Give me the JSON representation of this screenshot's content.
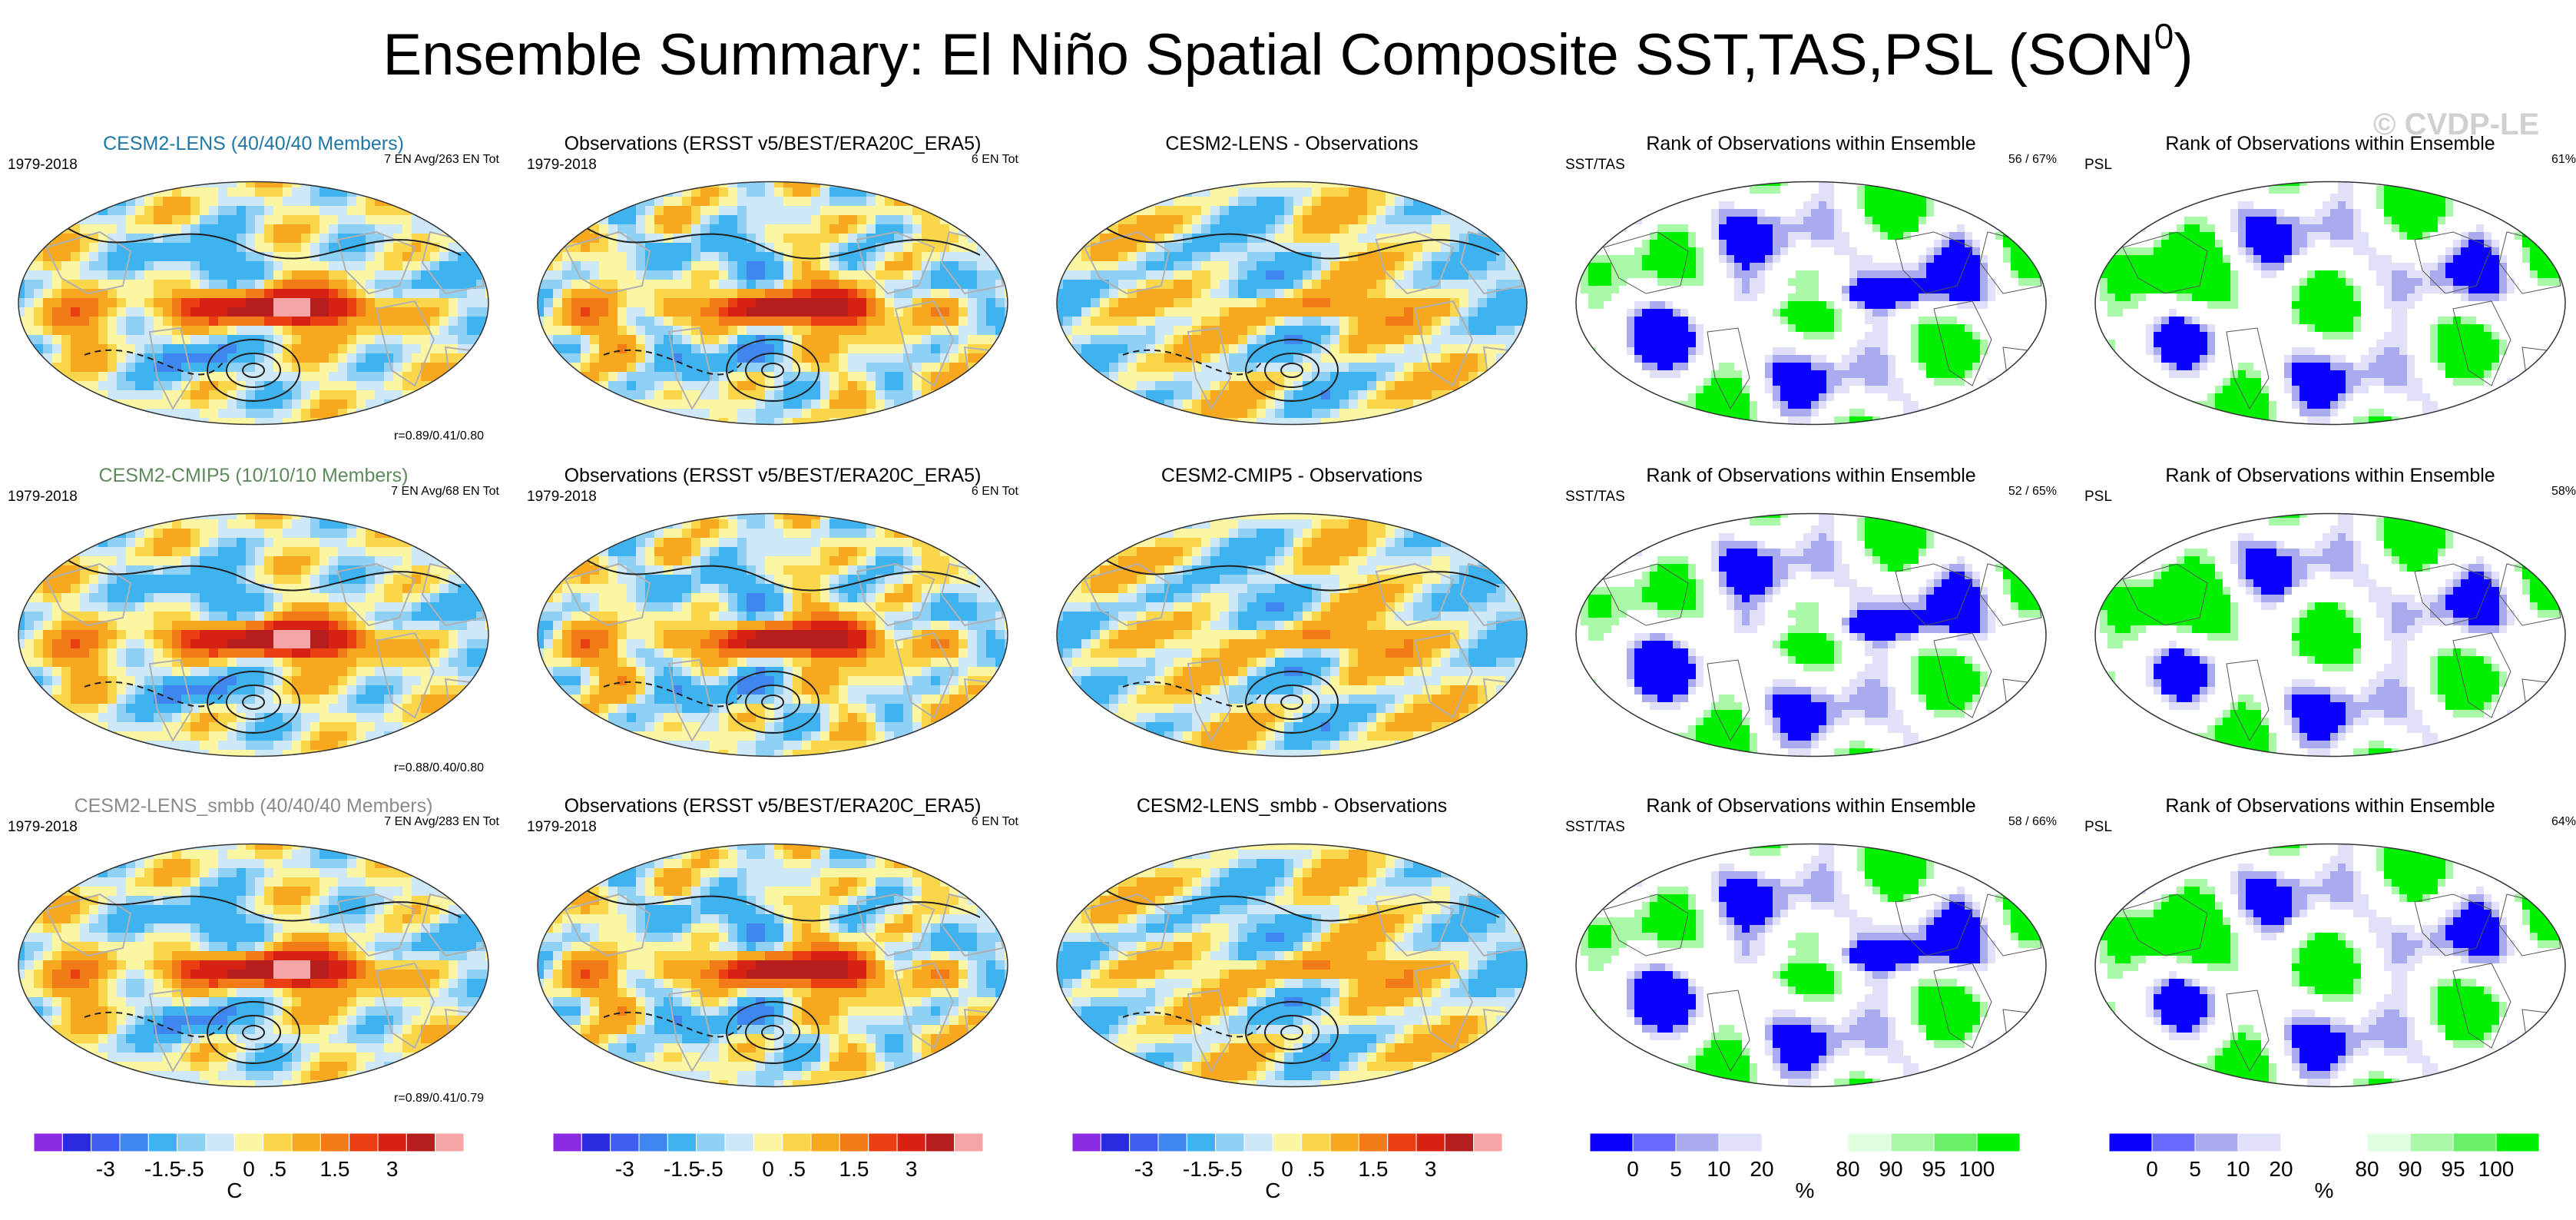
{
  "figure": {
    "title": "Ensemble Summary: El Niño Spatial Composite SST,TAS,PSL (SON",
    "title_sup": "0",
    "title_close": ")",
    "watermark": "© CVDP-LE"
  },
  "colors": {
    "temp_palette": [
      "#8b2be2",
      "#2a2ae0",
      "#3d5ef0",
      "#3f86ee",
      "#3fb2f0",
      "#8fd0f5",
      "#cfe8f7",
      "#fbf6a3",
      "#fbd64a",
      "#f7a81f",
      "#f27a17",
      "#ea3f12",
      "#d62113",
      "#b61e1e",
      "#f5a5a5"
    ],
    "rank_palette": [
      "#0b00ff",
      "#6a6aff",
      "#aaaaf0",
      "#e0e0f8",
      "#ffffff",
      "#ffffff",
      "#dfffdf",
      "#a8f8a8",
      "#68f068",
      "#00f000"
    ],
    "land_outline": "#b0b0b0",
    "map_outline": "#333333"
  },
  "chart_data": [
    {
      "type": "heatmap",
      "title": "CESM2-LENS (40/40/40 Members)",
      "period": "1979-2018",
      "info": "7 EN Avg/263 EN Tot",
      "corr": "r=0.89/0.41/0.80",
      "pattern": "model"
    },
    {
      "type": "heatmap",
      "title": "Observations (ERSST v5/BEST/ERA20C_ERA5)",
      "period": "1979-2018",
      "info": "6 EN Tot",
      "pattern": "obs"
    },
    {
      "type": "heatmap",
      "title": "CESM2-LENS - Observations",
      "pattern": "diff"
    },
    {
      "type": "heatmap",
      "title": "Rank of Observations within Ensemble",
      "left_label": "SST/TAS",
      "info": "56 /  67%",
      "pattern": "rank_a"
    },
    {
      "type": "heatmap",
      "title": "Rank of Observations within Ensemble",
      "left_label": "PSL",
      "info": "61%",
      "pattern": "rank_b"
    },
    {
      "type": "heatmap",
      "title": "CESM2-CMIP5 (10/10/10 Members)",
      "period": "1979-2018",
      "info": "7 EN Avg/68 EN Tot",
      "corr": "r=0.88/0.40/0.80",
      "pattern": "model"
    },
    {
      "type": "heatmap",
      "title": "Observations (ERSST v5/BEST/ERA20C_ERA5)",
      "period": "1979-2018",
      "info": "6 EN Tot",
      "pattern": "obs"
    },
    {
      "type": "heatmap",
      "title": "CESM2-CMIP5 - Observations",
      "pattern": "diff"
    },
    {
      "type": "heatmap",
      "title": "Rank of Observations within Ensemble",
      "left_label": "SST/TAS",
      "info": "52 /  65%",
      "pattern": "rank_a"
    },
    {
      "type": "heatmap",
      "title": "Rank of Observations within Ensemble",
      "left_label": "PSL",
      "info": "58%",
      "pattern": "rank_b"
    },
    {
      "type": "heatmap",
      "title": "CESM2-LENS_smbb (40/40/40 Members)",
      "period": "1979-2018",
      "info": "7 EN Avg/283 EN Tot",
      "corr": "r=0.89/0.41/0.79",
      "pattern": "model"
    },
    {
      "type": "heatmap",
      "title": "Observations (ERSST v5/BEST/ERA20C_ERA5)",
      "period": "1979-2018",
      "info": "6 EN Tot",
      "pattern": "obs"
    },
    {
      "type": "heatmap",
      "title": "CESM2-LENS_smbb - Observations",
      "pattern": "diff"
    },
    {
      "type": "heatmap",
      "title": "Rank of Observations within Ensemble",
      "left_label": "SST/TAS",
      "info": "58 /  66%",
      "pattern": "rank_a"
    },
    {
      "type": "heatmap",
      "title": "Rank of Observations within Ensemble",
      "left_label": "PSL",
      "info": "64%",
      "pattern": "rank_b"
    }
  ],
  "colorbars": [
    {
      "kind": "temp",
      "ticks": [
        "-3",
        "-1.5",
        "-.5",
        "0",
        ".5",
        "1.5",
        "3"
      ],
      "unit": "C"
    },
    {
      "kind": "temp",
      "ticks": [
        "-3",
        "-1.5",
        "-.5",
        "0",
        ".5",
        "1.5",
        "3"
      ],
      "unit": ""
    },
    {
      "kind": "temp",
      "ticks": [
        "-3",
        "-1.5",
        "-.5",
        "0",
        ".5",
        "1.5",
        "3"
      ],
      "unit": "C"
    },
    {
      "kind": "rank",
      "ticks": [
        "0",
        "5",
        "10",
        "20",
        "80",
        "90",
        "95",
        "100"
      ],
      "unit": "%"
    },
    {
      "kind": "rank",
      "ticks": [
        "0",
        "5",
        "10",
        "20",
        "80",
        "90",
        "95",
        "100"
      ],
      "unit": "%"
    }
  ]
}
